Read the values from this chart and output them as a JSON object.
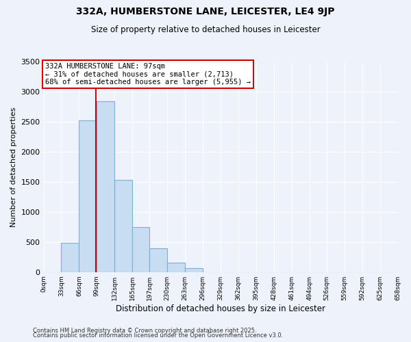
{
  "title": "332A, HUMBERSTONE LANE, LEICESTER, LE4 9JP",
  "subtitle": "Size of property relative to detached houses in Leicester",
  "xlabel": "Distribution of detached houses by size in Leicester",
  "ylabel": "Number of detached properties",
  "bin_edges": [
    0,
    33,
    66,
    99,
    132,
    165,
    197,
    230,
    263,
    296,
    329,
    362,
    395,
    428,
    461,
    494,
    526,
    559,
    592,
    625,
    658
  ],
  "bin_labels": [
    "0sqm",
    "33sqm",
    "66sqm",
    "99sqm",
    "132sqm",
    "165sqm",
    "197sqm",
    "230sqm",
    "263sqm",
    "296sqm",
    "329sqm",
    "362sqm",
    "395sqm",
    "428sqm",
    "461sqm",
    "494sqm",
    "526sqm",
    "559sqm",
    "592sqm",
    "625sqm",
    "658sqm"
  ],
  "bar_heights": [
    0,
    490,
    2530,
    2840,
    1540,
    750,
    400,
    155,
    60,
    0,
    0,
    0,
    0,
    0,
    0,
    0,
    0,
    0,
    0,
    0
  ],
  "bar_color": "#c9ddf2",
  "bar_edge_color": "#7aafd4",
  "property_line_x": 97,
  "property_line_color": "#cc0000",
  "annotation_text": "332A HUMBERSTONE LANE: 97sqm\n← 31% of detached houses are smaller (2,713)\n68% of semi-detached houses are larger (5,955) →",
  "annotation_box_color": "#ffffff",
  "annotation_box_edge": "#cc0000",
  "ylim": [
    0,
    3500
  ],
  "yticks": [
    0,
    500,
    1000,
    1500,
    2000,
    2500,
    3000,
    3500
  ],
  "background_color": "#eef2fa",
  "grid_color": "#ffffff",
  "footer1": "Contains HM Land Registry data © Crown copyright and database right 2025.",
  "footer2": "Contains public sector information licensed under the Open Government Licence v3.0."
}
